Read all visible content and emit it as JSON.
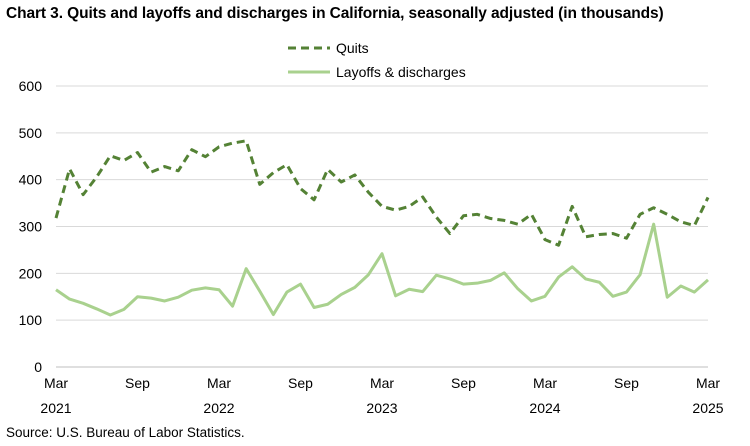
{
  "chart_data": {
    "type": "line",
    "title": "Chart 3. Quits and layoffs and discharges in California, seasonally adjusted (in thousands)",
    "source": "Source: U.S. Bureau of Labor Statistics.",
    "ylim": [
      0,
      600
    ],
    "yticks": [
      "0",
      "100",
      "200",
      "300",
      "400",
      "500",
      "600"
    ],
    "x_start": "2021-03",
    "x_end": "2025-03",
    "xticks": [
      {
        "month": "Mar",
        "year": "2021"
      },
      {
        "month": "Sep",
        "year": ""
      },
      {
        "month": "Mar",
        "year": "2022"
      },
      {
        "month": "Sep",
        "year": ""
      },
      {
        "month": "Mar",
        "year": "2023"
      },
      {
        "month": "Sep",
        "year": ""
      },
      {
        "month": "Mar",
        "year": "2024"
      },
      {
        "month": "Sep",
        "year": ""
      },
      {
        "month": "Mar",
        "year": "2025"
      }
    ],
    "grid": true,
    "legend_position": "top",
    "series": [
      {
        "name": "Quits",
        "color": "#548235",
        "style": "dashed",
        "values": [
          318,
          423,
          368,
          406,
          451,
          441,
          458,
          416,
          428,
          419,
          464,
          449,
          470,
          478,
          483,
          390,
          415,
          432,
          381,
          357,
          422,
          395,
          410,
          373,
          343,
          335,
          343,
          363,
          320,
          285,
          323,
          326,
          317,
          313,
          305,
          326,
          272,
          260,
          343,
          278,
          283,
          285,
          275,
          326,
          340,
          326,
          310,
          302,
          362
        ]
      },
      {
        "name": "Layoffs & discharges",
        "color": "#A9D18E",
        "style": "solid",
        "values": [
          165,
          145,
          136,
          124,
          111,
          123,
          150,
          147,
          141,
          149,
          164,
          169,
          165,
          130,
          210,
          162,
          112,
          160,
          177,
          127,
          134,
          155,
          170,
          197,
          242,
          152,
          166,
          161,
          196,
          188,
          177,
          179,
          185,
          201,
          167,
          141,
          151,
          192,
          214,
          188,
          181,
          151,
          160,
          197,
          305,
          149,
          173,
          160,
          186
        ]
      }
    ]
  }
}
